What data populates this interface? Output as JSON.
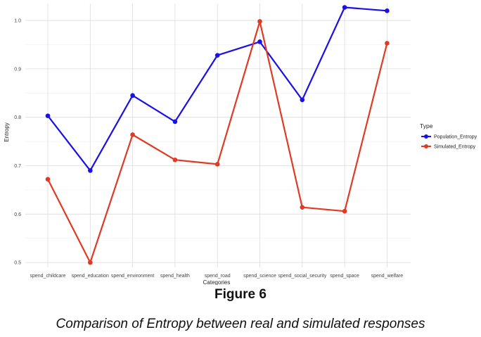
{
  "chart_data": {
    "type": "line",
    "title": "",
    "xlabel": "Categories",
    "ylabel": "Entropy",
    "categories": [
      "spend_childcare",
      "spend_education",
      "spend_environment",
      "spend_health",
      "spend_road",
      "spend_science",
      "spend_social_security",
      "spend_space",
      "spend_welfare"
    ],
    "ylim": [
      0.49,
      1.035
    ],
    "yticks": [
      "0.5",
      "0.6",
      "0.7",
      "0.8",
      "0.9",
      "1.0"
    ],
    "grid": true,
    "legend": {
      "title": "Type",
      "placement": "right"
    },
    "series": [
      {
        "name": "Population_Entropy",
        "color": "#1a10e8",
        "values": [
          0.803,
          0.69,
          0.845,
          0.791,
          0.928,
          0.956,
          0.836,
          1.027,
          1.02
        ]
      },
      {
        "name": "Simulated_Entropy",
        "color": "#e03a25",
        "values": [
          0.672,
          0.5,
          0.764,
          0.712,
          0.703,
          0.998,
          0.614,
          0.606,
          0.953
        ]
      }
    ]
  },
  "figure": {
    "label": "Figure 6",
    "caption": "Comparison of Entropy between real and simulated responses"
  }
}
